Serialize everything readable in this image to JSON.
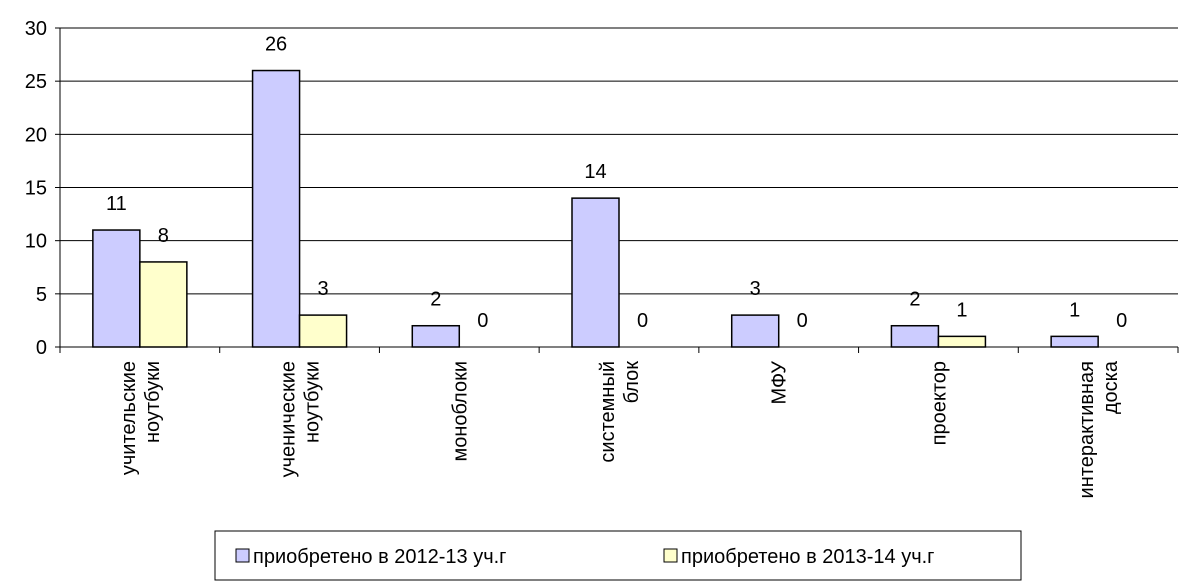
{
  "chart_data": {
    "type": "bar",
    "categories": [
      [
        "учительские",
        "ноутбуки"
      ],
      [
        "ученические",
        "ноутбуки"
      ],
      [
        "моноблоки"
      ],
      [
        "системный",
        "блок"
      ],
      [
        "МФУ"
      ],
      [
        "проектор"
      ],
      [
        "интерактивная",
        "доска"
      ]
    ],
    "series": [
      {
        "name": "приобретено в 2012-13 уч.г",
        "values": [
          11,
          26,
          2,
          14,
          3,
          2,
          1
        ],
        "color": "#ccccff"
      },
      {
        "name": "приобретено в 2013-14 уч.г",
        "values": [
          8,
          3,
          0,
          0,
          0,
          1,
          0
        ],
        "color": "#ffffcc"
      }
    ],
    "ylim": [
      0,
      30
    ],
    "yticks": [
      0,
      5,
      10,
      15,
      20,
      25,
      30
    ],
    "grid": true,
    "legend_position": "bottom"
  }
}
